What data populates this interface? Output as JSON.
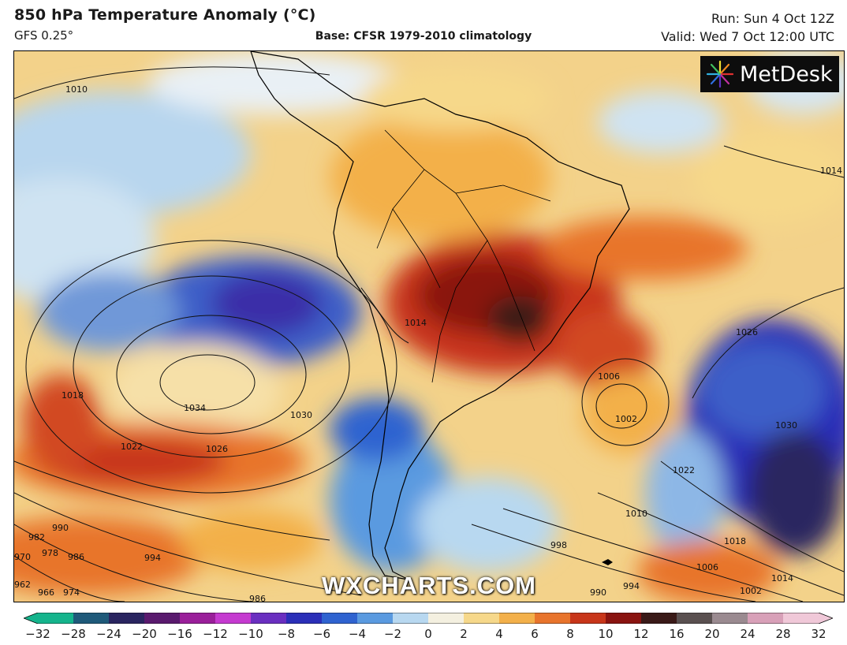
{
  "header": {
    "title": "850 hPa Temperature Anomaly (°C)",
    "model": "GFS 0.25°",
    "base": "Base: CFSR 1979-2010 climatology",
    "run": "Run: Sun 4 Oct 12Z",
    "valid": "Valid: Wed 7 Oct 12:00 UTC"
  },
  "logo": {
    "text": "MetDesk",
    "icon": "starburst-logo-icon"
  },
  "watermark": "WXCHARTS.COM",
  "map": {
    "region": "South America and surrounding oceans",
    "field": "850 hPa temperature anomaly with sea-level pressure isobars (hPa)",
    "isobar_labels": [
      "1010",
      "1014",
      "1034",
      "1030",
      "1026",
      "1022",
      "1018",
      "990",
      "986",
      "982",
      "978",
      "970",
      "962",
      "966",
      "974",
      "994",
      "986",
      "998",
      "990",
      "994",
      "1002",
      "1006",
      "1010",
      "1014",
      "1018",
      "1022",
      "1030",
      "1026",
      "1006",
      "1002",
      "1014",
      "1014"
    ]
  },
  "colorbar": {
    "ticks": [
      "−32",
      "−28",
      "−24",
      "−20",
      "−16",
      "−12",
      "−10",
      "−8",
      "−6",
      "−4",
      "−2",
      "0",
      "2",
      "4",
      "6",
      "8",
      "10",
      "12",
      "16",
      "20",
      "24",
      "28",
      "32"
    ],
    "colors": [
      "#15b48c",
      "#1f5a7a",
      "#2a2560",
      "#5a1a6e",
      "#9a1f9a",
      "#c53ad0",
      "#6a2fc0",
      "#2b2fb8",
      "#2f63d0",
      "#5a9ae0",
      "#b8d8f0",
      "#f4f0e0",
      "#f6d88a",
      "#f3b04a",
      "#e8742c",
      "#c8361a",
      "#8a1410",
      "#3a1a18",
      "#5a5050",
      "#9a8a90",
      "#d8a0b8",
      "#f0c8d8"
    ]
  }
}
